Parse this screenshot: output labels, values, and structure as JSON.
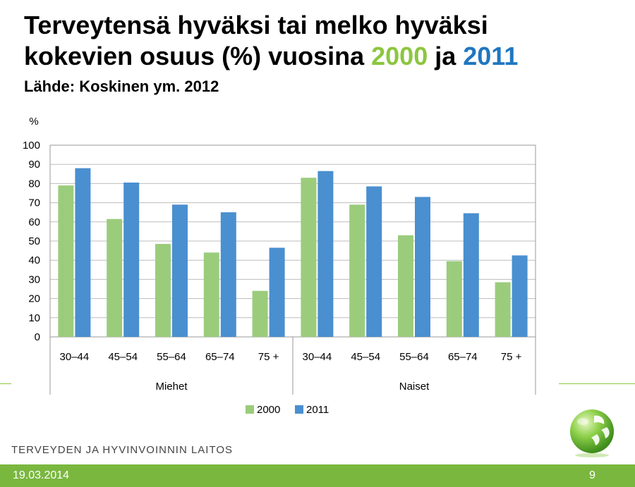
{
  "slide": {
    "title_line1": "Terveytensä hyväksi tai melko hyväksi",
    "title_line2_prefix": "kokevien osuus (%) vuosina ",
    "title_year1": "2000",
    "title_mid": " ja ",
    "title_year2": "2011",
    "source": "Lähde: Koskinen ym. 2012",
    "organization": "TERVEYDEN JA HYVINVOINNIN LAITOS",
    "date": "19.03.2014",
    "page_number": "9"
  },
  "colors": {
    "year_2000": "#9bcc7c",
    "year_2011": "#4a8fcf",
    "accent_green": "#7ab73f"
  },
  "chart_data": {
    "type": "bar",
    "title": "",
    "ylabel": "%",
    "xlabel": "",
    "ylim": [
      0,
      100
    ],
    "yticks": [
      0,
      10,
      20,
      30,
      40,
      50,
      60,
      70,
      80,
      90,
      100
    ],
    "grid": true,
    "legend_position": "bottom",
    "groups": [
      "Miehet",
      "Naiset"
    ],
    "categories": [
      "30–44",
      "45–54",
      "55–64",
      "65–74",
      "75 +",
      "30–44",
      "45–54",
      "55–64",
      "65–74",
      "75 +"
    ],
    "series": [
      {
        "name": "2000",
        "color": "#9bcc7c",
        "values": [
          79,
          61.5,
          48.5,
          44,
          24,
          83,
          69,
          53,
          39.5,
          28.5
        ]
      },
      {
        "name": "2011",
        "color": "#4a8fcf",
        "values": [
          88,
          80.5,
          69,
          65,
          46.5,
          86.5,
          78.5,
          73,
          64.5,
          42.5
        ]
      }
    ]
  }
}
